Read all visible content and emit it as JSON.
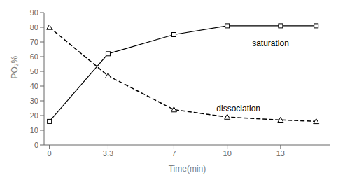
{
  "chart_data": {
    "type": "line",
    "x": [
      0,
      3.3,
      7,
      10,
      13,
      15
    ],
    "series": [
      {
        "color": "#000000",
        "marker": "square",
        "line_style": "solid",
        "values": [
          16,
          62,
          75,
          81,
          81,
          81
        ]
      },
      {
        "color": "#000000",
        "marker": "triangle",
        "line_style": "dashed",
        "values": [
          80,
          47,
          24,
          19,
          17,
          16
        ]
      }
    ],
    "annotations": [
      {
        "text": "saturation",
        "x": 11.2,
        "y": 69,
        "color": "#000000"
      },
      {
        "text": "dissociation",
        "x": 9.2,
        "y": 25,
        "color": "#000000"
      }
    ],
    "x_label": "Time(min)",
    "y_label": "PO₂%",
    "xlim": [
      -0.3,
      15.8
    ],
    "ylim": [
      0,
      90
    ],
    "xticks": [
      0,
      3.3,
      7,
      10,
      13
    ],
    "yticks": [
      0,
      10,
      20,
      30,
      40,
      50,
      60,
      70,
      80,
      90
    ],
    "grid": false
  }
}
